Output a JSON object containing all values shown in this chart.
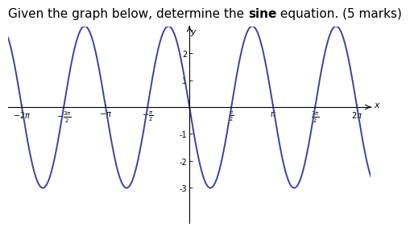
{
  "title_parts": [
    {
      "text": "Given the graph below, determine the ",
      "bold": false
    },
    {
      "text": "sine",
      "bold": true
    },
    {
      "text": " equation. (5 marks)",
      "bold": false
    }
  ],
  "amplitude": 3,
  "frequency": 2,
  "phase": 0,
  "vertical_shift": 0,
  "sign": -1,
  "x_min": -6.8,
  "x_max": 6.8,
  "y_min": -4.3,
  "y_max": 3.0,
  "x_ticks": [
    -6.283185,
    -4.712389,
    -3.141593,
    -1.570796,
    1.570796,
    3.141593,
    4.712389,
    6.283185
  ],
  "y_ticks": [
    -3,
    -2,
    -1,
    1,
    2
  ],
  "line_color": "#4040a0",
  "line_width": 1.4,
  "background_color": "#ffffff",
  "axis_color": "#000000",
  "title_fontsize": 11,
  "tick_fontsize": 7
}
